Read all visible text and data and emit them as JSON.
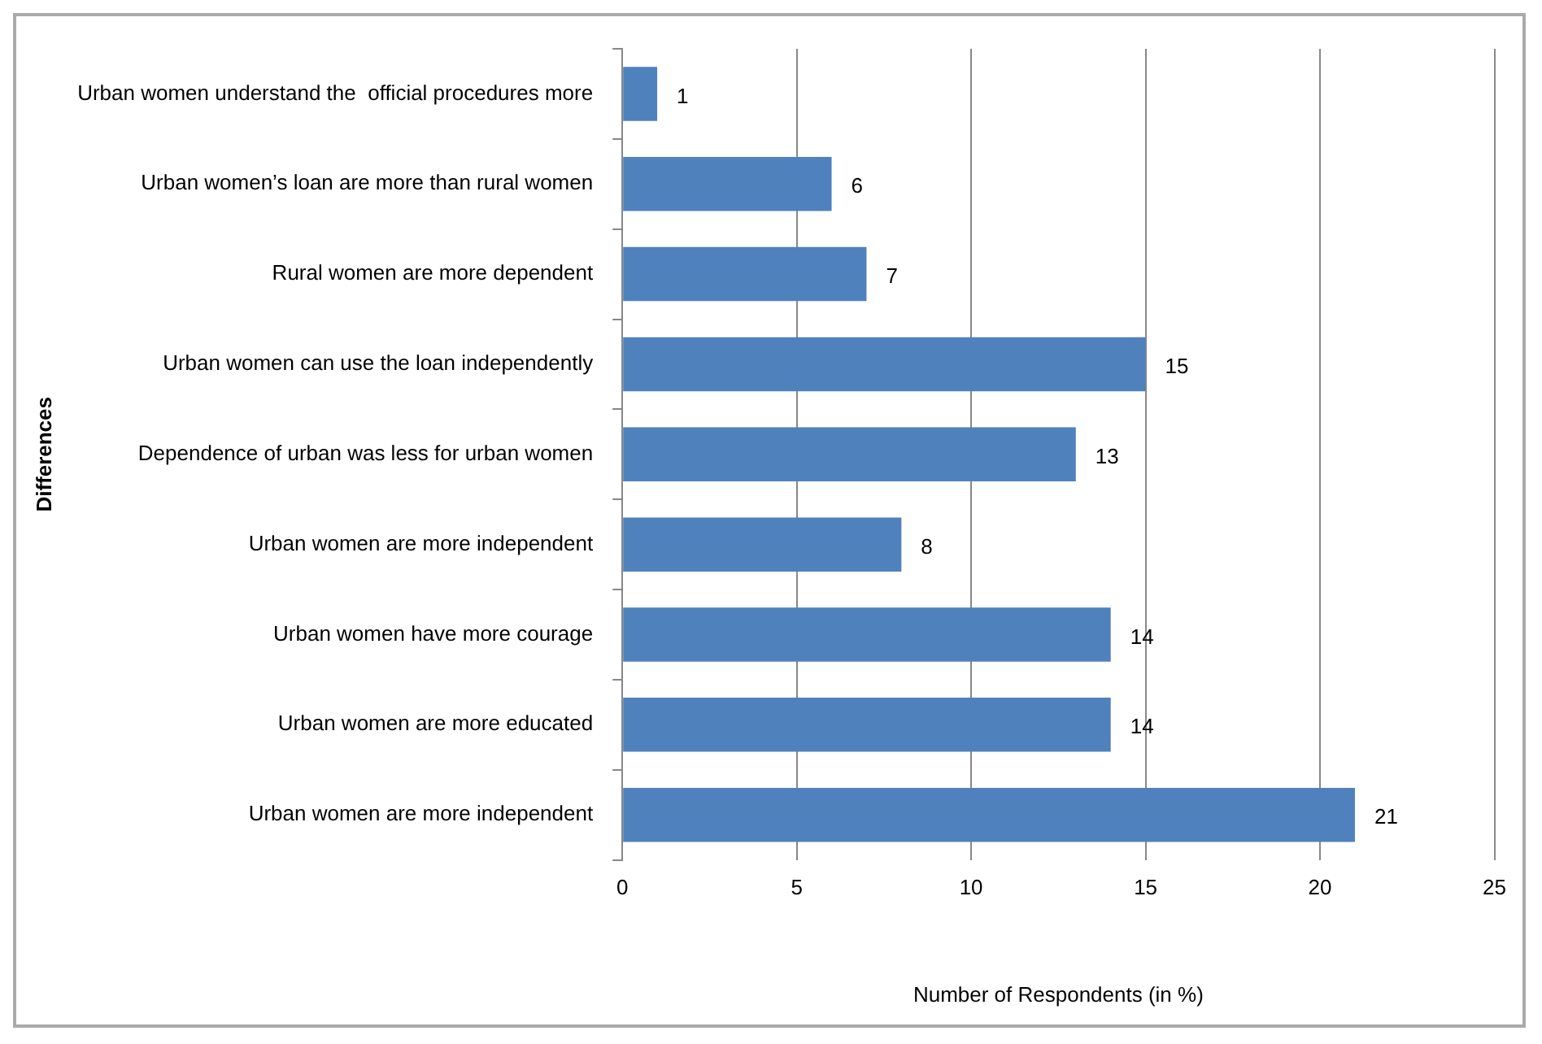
{
  "chart_data": {
    "type": "bar",
    "orientation": "horizontal",
    "xlabel": "Number of Respondents (in %)",
    "ylabel": "Differences",
    "categories": [
      "Urban women understand the  official procedures more",
      "Urban women’s loan are more than rural women",
      "Rural women are more dependent",
      "Urban women can use the loan independently",
      "Dependence of urban was less for urban women",
      "Urban women are more independent",
      "Urban women have more courage",
      "Urban women are more educated",
      "Urban women are more independent"
    ],
    "values": [
      1,
      6,
      7,
      15,
      13,
      8,
      14,
      14,
      21
    ],
    "color": "#4f81bd",
    "data_labels": true,
    "xlim": [
      0,
      25
    ],
    "xticks": [
      0,
      5,
      10,
      15,
      20,
      25
    ],
    "grid": "x",
    "legend": false
  }
}
